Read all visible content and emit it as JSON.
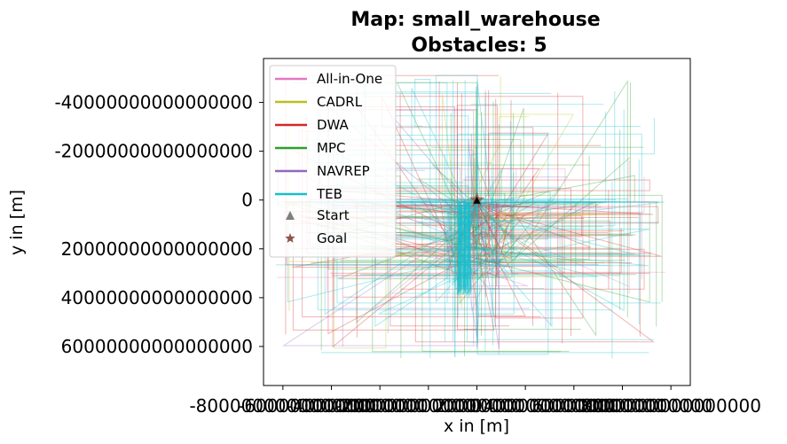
{
  "chart_data": {
    "type": "line",
    "title": "Map: small_warehouse",
    "subtitle": "Obstacles: 5",
    "xlabel": "x in [m]",
    "ylabel": "y in [m]",
    "x_ticks": [
      "-8000000000000000",
      "-6000000000000000",
      "-4000000000000000",
      "-2000000000000000",
      "0",
      "2000000000000000",
      "4000000000000000",
      "6000000000000000",
      "8000000000000000"
    ],
    "x_tick_values": [
      -8000000000000000,
      -6000000000000000,
      -4000000000000000,
      -2000000000000000,
      0,
      2000000000000000,
      4000000000000000,
      6000000000000000,
      8000000000000000
    ],
    "y_ticks": [
      "-40000000000000000",
      "-20000000000000000",
      "0",
      "20000000000000000",
      "40000000000000000",
      "60000000000000000"
    ],
    "y_tick_values": [
      -40000000000000000,
      -20000000000000000,
      0,
      20000000000000000,
      40000000000000000,
      60000000000000000
    ],
    "xlim": [
      -8800000000000000,
      8800000000000000
    ],
    "ylim": [
      76000000000000000,
      -58000000000000000
    ],
    "y_inverted": true,
    "grid": false,
    "legend_position": "top-left",
    "series": [
      {
        "name": "All-in-One",
        "color": "#e377c2"
      },
      {
        "name": "CADRL",
        "color": "#bcbd22"
      },
      {
        "name": "DWA",
        "color": "#d62728"
      },
      {
        "name": "MPC",
        "color": "#2ca02c"
      },
      {
        "name": "NAVREP",
        "color": "#9467bd"
      },
      {
        "name": "TEB",
        "color": "#17becf"
      }
    ],
    "markers": [
      {
        "name": "Start",
        "symbol": "triangle",
        "color": "#7f7f7f",
        "x": 0,
        "y": 0
      },
      {
        "name": "Goal",
        "symbol": "star",
        "color": "#8c564b",
        "x": 0,
        "y": 0
      }
    ]
  }
}
